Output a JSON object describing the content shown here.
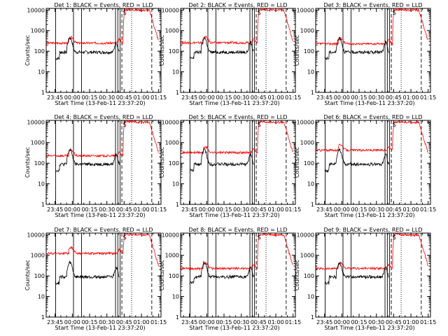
{
  "figure": {
    "xlabel": "Start Time (13-Feb-11 23:37:20)",
    "ylabel": "Counts/sec",
    "colors": {
      "events": "#000000",
      "lld": "#ff0000",
      "axes": "#000000"
    }
  },
  "chart_data": [
    {
      "type": "line",
      "title": "Det 1: BLACK = Events, RED = LLD",
      "xlabel": "Start Time (13-Feb-11 23:37:20)",
      "ylabel": "Counts/sec",
      "x_ticks": [
        "23:45",
        "00:00",
        "00:15",
        "00:30",
        "00:45",
        "01:00",
        "01:15"
      ],
      "y_ticks": [
        "1",
        "10",
        "100",
        "1000",
        "10000"
      ],
      "yscale": "log",
      "ylim": [
        1,
        12000
      ],
      "series": [
        {
          "name": "Events",
          "color": "#000000"
        },
        {
          "name": "LLD",
          "color": "#ff0000"
        }
      ]
    },
    {
      "type": "line",
      "title": "Det 2: BLACK = Events, RED = LLD",
      "xlabel": "Start Time (13-Feb-11 23:37:20)",
      "ylabel": "Counts/sec",
      "x_ticks": [
        "23:45",
        "00:00",
        "00:15",
        "00:30",
        "00:45",
        "01:00",
        "01:15"
      ],
      "y_ticks": [
        "1",
        "10",
        "100",
        "1000",
        "10000"
      ],
      "yscale": "log",
      "ylim": [
        1,
        12000
      ],
      "series": [
        {
          "name": "Events",
          "color": "#000000"
        },
        {
          "name": "LLD",
          "color": "#ff0000"
        }
      ]
    },
    {
      "type": "line",
      "title": "Det 3: BLACK = Events, RED = LLD",
      "xlabel": "Start Time (13-Feb-11 23:37:20)",
      "ylabel": "Counts/sec",
      "x_ticks": [
        "23:45",
        "00:00",
        "00:15",
        "00:30",
        "00:45",
        "01:00",
        "01:15"
      ],
      "y_ticks": [
        "1",
        "10",
        "100",
        "1000",
        "10000"
      ],
      "yscale": "log",
      "ylim": [
        1,
        12000
      ],
      "series": [
        {
          "name": "Events",
          "color": "#000000"
        },
        {
          "name": "LLD",
          "color": "#ff0000"
        }
      ]
    },
    {
      "type": "line",
      "title": "Det 4: BLACK = Events, RED = LLD",
      "xlabel": "Start Time (13-Feb-11 23:37:20)",
      "ylabel": "Counts/sec",
      "x_ticks": [
        "23:45",
        "00:00",
        "00:15",
        "00:30",
        "00:45",
        "01:00",
        "01:15"
      ],
      "y_ticks": [
        "1",
        "10",
        "100",
        "1000",
        "10000"
      ],
      "yscale": "log",
      "ylim": [
        1,
        12000
      ],
      "series": [
        {
          "name": "Events",
          "color": "#000000"
        },
        {
          "name": "LLD",
          "color": "#ff0000"
        }
      ]
    },
    {
      "type": "line",
      "title": "Det 5: BLACK = Events, RED = LLD",
      "xlabel": "Start Time (13-Feb-11 23:37:20)",
      "ylabel": "Counts/sec",
      "x_ticks": [
        "23:45",
        "00:00",
        "00:15",
        "00:30",
        "00:45",
        "01:00",
        "01:15"
      ],
      "y_ticks": [
        "1",
        "10",
        "100",
        "1000",
        "10000"
      ],
      "yscale": "log",
      "ylim": [
        1,
        12000
      ],
      "series": [
        {
          "name": "Events",
          "color": "#000000"
        },
        {
          "name": "LLD",
          "color": "#ff0000"
        }
      ]
    },
    {
      "type": "line",
      "title": "Det 6: BLACK = Events, RED = LLD",
      "xlabel": "Start Time (13-Feb-11 23:37:20)",
      "ylabel": "Counts/sec",
      "x_ticks": [
        "23:45",
        "00:00",
        "00:15",
        "00:30",
        "00:45",
        "01:00",
        "01:15"
      ],
      "y_ticks": [
        "1",
        "10",
        "100",
        "1000",
        "10000"
      ],
      "yscale": "log",
      "ylim": [
        1,
        12000
      ],
      "series": [
        {
          "name": "Events",
          "color": "#000000"
        },
        {
          "name": "LLD",
          "color": "#ff0000"
        }
      ]
    },
    {
      "type": "line",
      "title": "Det 7: BLACK = Events, RED = LLD",
      "xlabel": "Start Time (13-Feb-11 23:37:20)",
      "ylabel": "Counts/sec",
      "x_ticks": [
        "23:45",
        "00:00",
        "00:15",
        "00:30",
        "00:45",
        "01:00",
        "01:15"
      ],
      "y_ticks": [
        "1",
        "10",
        "100",
        "1000",
        "10000"
      ],
      "yscale": "log",
      "ylim": [
        1,
        12000
      ],
      "series": [
        {
          "name": "Events",
          "color": "#000000"
        },
        {
          "name": "LLD",
          "color": "#ff0000"
        }
      ]
    },
    {
      "type": "line",
      "title": "Det 8: BLACK = Events, RED = LLD",
      "xlabel": "Start Time (13-Feb-11 23:37:20)",
      "ylabel": "Counts/sec",
      "x_ticks": [
        "23:45",
        "00:00",
        "00:15",
        "00:30",
        "00:45",
        "01:00",
        "01:15"
      ],
      "y_ticks": [
        "1",
        "10",
        "100",
        "1000",
        "10000"
      ],
      "yscale": "log",
      "ylim": [
        1,
        12000
      ],
      "series": [
        {
          "name": "Events",
          "color": "#000000"
        },
        {
          "name": "LLD",
          "color": "#ff0000"
        }
      ]
    },
    {
      "type": "line",
      "title": "Det 9: BLACK = Events, RED = LLD",
      "xlabel": "Start Time (13-Feb-11 23:37:20)",
      "ylabel": "Counts/sec",
      "x_ticks": [
        "23:45",
        "00:00",
        "00:15",
        "00:30",
        "00:45",
        "01:00",
        "01:15"
      ],
      "y_ticks": [
        "1",
        "10",
        "100",
        "1000",
        "10000"
      ],
      "yscale": "log",
      "ylim": [
        1,
        12000
      ],
      "series": [
        {
          "name": "Events",
          "color": "#000000"
        },
        {
          "name": "LLD",
          "color": "#ff0000"
        }
      ]
    }
  ]
}
